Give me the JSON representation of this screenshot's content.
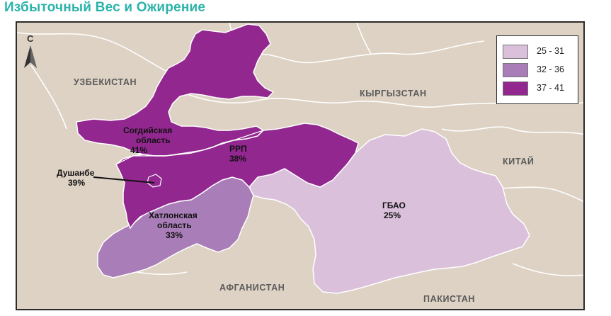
{
  "title": "Избыточный Вес и Ожирение",
  "north_label": "С",
  "colors": {
    "title": "#2bb3a9",
    "background_land": "#ddd2c4",
    "bin_low": "#dbc0dc",
    "bin_mid": "#a97db7",
    "bin_high": "#92278f",
    "border": "#ffffff"
  },
  "legend": {
    "items": [
      {
        "label": "25 - 31",
        "color": "#dbc0dc"
      },
      {
        "label": "32 - 36",
        "color": "#a97db7"
      },
      {
        "label": "37 - 41",
        "color": "#92278f"
      }
    ]
  },
  "countries": {
    "uzbekistan": "УЗБЕКИСТАН",
    "kyrgyzstan": "КЫРГЫЗСТАН",
    "china": "КИТАЙ",
    "afghanistan": "АФГАНИСТАН",
    "pakistan": "ПАКИСТАН"
  },
  "regions": {
    "sogd": {
      "line1": "Согдийская",
      "line2": "область",
      "value": "41%",
      "bin": "37 - 41"
    },
    "rrp": {
      "line1": "РРП",
      "value": "38%",
      "bin": "37 - 41"
    },
    "dushanbe": {
      "line1": "Душанбе",
      "value": "39%",
      "bin": "37 - 41"
    },
    "khatlon": {
      "line1": "Хатлонская",
      "line2": "область",
      "value": "33%",
      "bin": "32 - 36"
    },
    "gbao": {
      "line1": "ГБАО",
      "value": "25%",
      "bin": "25 - 31"
    }
  }
}
